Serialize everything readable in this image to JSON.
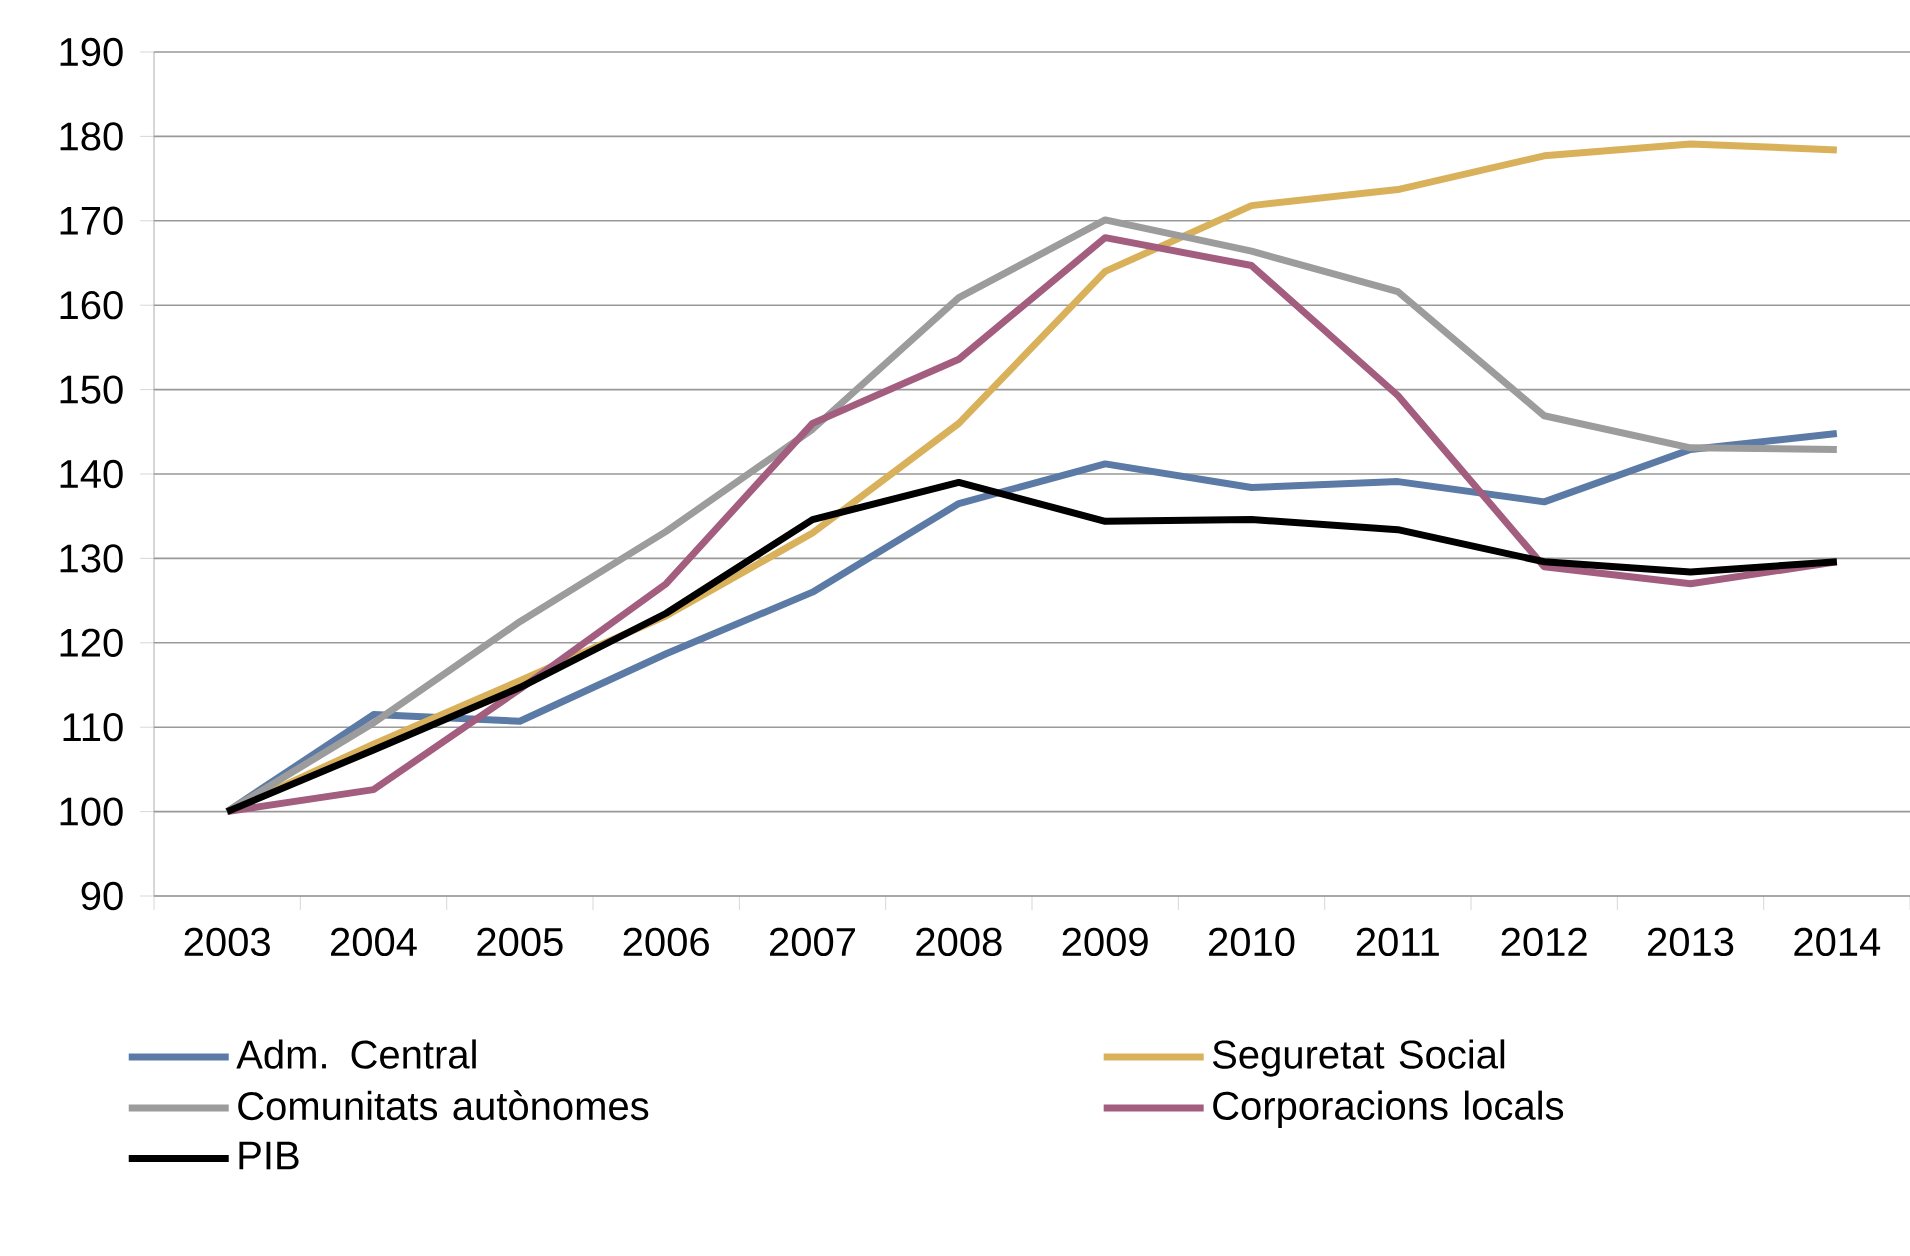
{
  "chart_data": {
    "type": "line",
    "categories": [
      "2003",
      "2004",
      "2005",
      "2006",
      "2007",
      "2008",
      "2009",
      "2010",
      "2011",
      "2012",
      "2013",
      "2014"
    ],
    "series": [
      {
        "name": "Adm. Central",
        "color": "#5b7aa6",
        "values": [
          100,
          111.5,
          110.7,
          118.7,
          126,
          136.5,
          141.2,
          138.4,
          139.1,
          136.7,
          142.9,
          144.8
        ]
      },
      {
        "name": "Seguretat Social",
        "color": "#d9b15b",
        "values": [
          100,
          108,
          115.5,
          123.2,
          133,
          146,
          164,
          171.8,
          173.7,
          177.7,
          179.1,
          178.4
        ]
      },
      {
        "name": "Comunitats autònomes",
        "color": "#9c9c9c",
        "values": [
          100,
          110.5,
          122.5,
          133.2,
          145.3,
          160.9,
          170.1,
          166.4,
          161.6,
          146.9,
          143.1,
          142.9
        ]
      },
      {
        "name": "Corporacions locals",
        "color": "#a35d7f",
        "values": [
          100,
          102.6,
          114.5,
          127,
          146,
          153.6,
          168,
          164.7,
          149.3,
          129,
          127,
          129.6
        ]
      },
      {
        "name": "PIB",
        "color": "#000000",
        "values": [
          100,
          107.3,
          114.7,
          123.5,
          134.6,
          139,
          134.4,
          134.6,
          133.4,
          129.6,
          128.4,
          129.6
        ]
      }
    ],
    "ylim": [
      90,
      190
    ],
    "yticks": [
      90,
      100,
      110,
      120,
      130,
      140,
      150,
      160,
      170,
      180,
      190
    ],
    "grid": "y",
    "legend": "bottom",
    "marker": "none",
    "line_style": "solid"
  }
}
